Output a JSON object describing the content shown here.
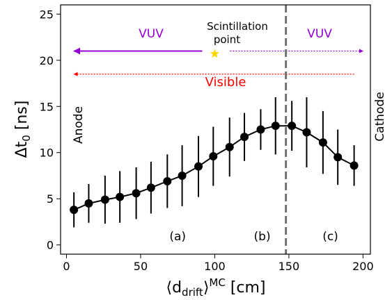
{
  "chart_data": {
    "type": "scatter",
    "title": "",
    "xlabel_main": "⟨d",
    "xlabel_sub": "drift",
    "xlabel_close": "⟩",
    "xlabel_sup": "MC",
    "xlabel_unit": " [cm]",
    "ylabel_main": "Δt",
    "ylabel_sub": "0",
    "ylabel_unit": " [ns]",
    "xlim": [
      -4,
      205
    ],
    "ylim": [
      -1,
      26
    ],
    "xticks": [
      0,
      50,
      100,
      150,
      200
    ],
    "yticks": [
      0,
      5,
      10,
      15,
      20,
      25
    ],
    "grid": false,
    "series": [
      {
        "x": [
          5,
          15,
          26,
          36,
          47,
          57,
          68,
          78,
          89,
          99,
          110,
          120,
          131,
          141,
          152,
          162,
          173,
          183,
          194
        ],
        "y": [
          3.8,
          4.5,
          4.9,
          5.2,
          5.6,
          6.2,
          6.9,
          7.5,
          8.5,
          9.6,
          10.6,
          11.7,
          12.5,
          12.9,
          12.9,
          12.2,
          11.1,
          9.5,
          8.6
        ],
        "yerr": [
          1.9,
          2.1,
          2.6,
          2.8,
          2.8,
          2.8,
          2.9,
          3.3,
          3.3,
          3.2,
          3.2,
          2.6,
          2.2,
          3.1,
          2.7,
          3.8,
          3.4,
          3.0,
          2.2
        ]
      }
    ],
    "vline": {
      "x": 148,
      "style": "dashed",
      "color": "#707070"
    },
    "arrows": [
      {
        "label": "VUV",
        "from": 100,
        "to": 5,
        "y": 21,
        "style": "solid",
        "color": "#9400D3"
      },
      {
        "label": "VUV",
        "from": 100,
        "to": 200,
        "y": 21,
        "style": "dotted",
        "color": "#9400D3"
      },
      {
        "label": "Visible",
        "from": 194,
        "to": 5,
        "y": 18.5,
        "style": "dotted",
        "color": "#FF0000"
      }
    ],
    "arrow_labels": {
      "vuv_left": "VUV",
      "vuv_right": "VUV",
      "visible": "Visible"
    },
    "scintillation": {
      "line1": "Scintillation",
      "line2": "point",
      "x": 100,
      "y": 21,
      "color": "#FFD700"
    },
    "side_labels": {
      "left": "Anode",
      "right": "Cathode"
    },
    "region_labels": [
      {
        "text": "(a)",
        "x": 75,
        "y": 0.5
      },
      {
        "text": "(b)",
        "x": 132,
        "y": 0.5
      },
      {
        "text": "(c)",
        "x": 178,
        "y": 0.5
      }
    ],
    "colors": {
      "points": "#000000",
      "vuv": "#9400D3",
      "visible": "#FF0000",
      "star": "#FFD700",
      "vline": "#707070"
    }
  }
}
